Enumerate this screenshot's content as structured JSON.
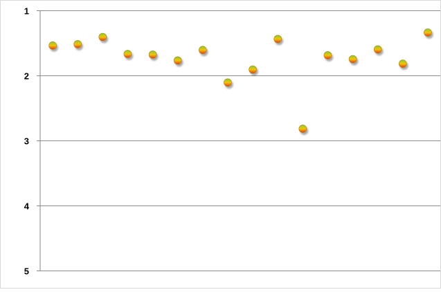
{
  "chart_data": {
    "type": "scatter",
    "title": "",
    "xlabel": "",
    "ylabel": "",
    "y_axis": {
      "reversed": true,
      "range": [
        1,
        5
      ],
      "ticks": [
        "1",
        "2",
        "3",
        "4",
        "5"
      ],
      "gridlines": true
    },
    "x_axis": {
      "range": [
        0.5,
        16.5
      ],
      "visible": false
    },
    "legend": "none",
    "marker_colors": {
      "top": "#7ccf3a",
      "middle": "#f5c400",
      "bottom": "#e23a1d",
      "outline": "#b07a10"
    },
    "points": [
      {
        "x": 1,
        "y": 1.54
      },
      {
        "x": 2,
        "y": 1.52
      },
      {
        "x": 3,
        "y": 1.41
      },
      {
        "x": 4,
        "y": 1.67
      },
      {
        "x": 5,
        "y": 1.68
      },
      {
        "x": 6,
        "y": 1.77
      },
      {
        "x": 7,
        "y": 1.61
      },
      {
        "x": 8,
        "y": 2.11
      },
      {
        "x": 9,
        "y": 1.91
      },
      {
        "x": 10,
        "y": 1.44
      },
      {
        "x": 11,
        "y": 2.82
      },
      {
        "x": 12,
        "y": 1.69
      },
      {
        "x": 13,
        "y": 1.75
      },
      {
        "x": 14,
        "y": 1.6
      },
      {
        "x": 15,
        "y": 1.82
      },
      {
        "x": 16,
        "y": 1.34
      }
    ]
  }
}
